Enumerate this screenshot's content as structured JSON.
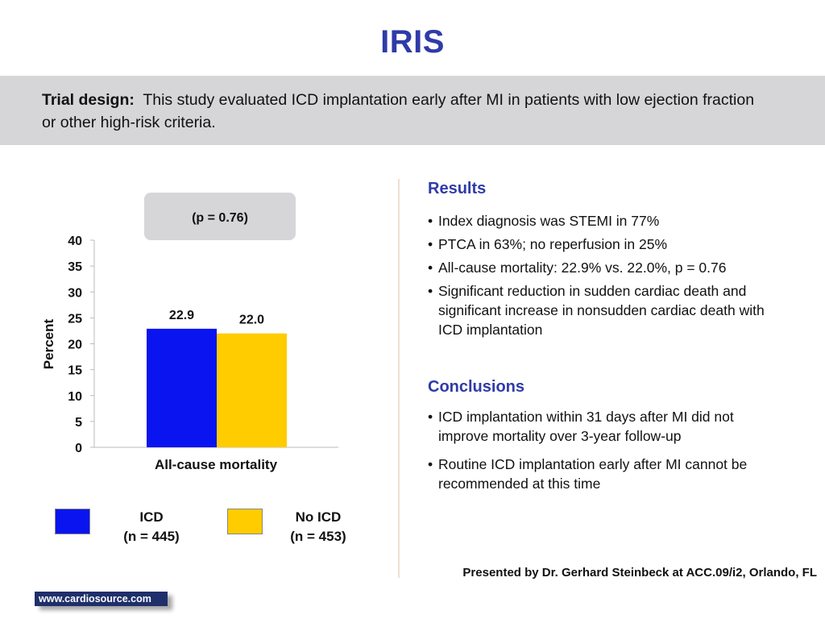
{
  "title": "IRIS",
  "design": {
    "label": "Trial design:",
    "text": "This study evaluated ICD implantation early after MI in patients with low ejection fraction or other high-risk criteria."
  },
  "p_value": "(p = 0.76)",
  "chart_data": {
    "type": "bar",
    "categories": [
      "All-cause mortality"
    ],
    "series": [
      {
        "name": "ICD\n(n = 445)",
        "values": [
          22.9
        ],
        "color": "#0a14f0"
      },
      {
        "name": "No ICD\n(n = 453)",
        "values": [
          22.0
        ],
        "color": "#ffcc00"
      }
    ],
    "data_labels": [
      "22.9",
      "22.0"
    ],
    "ylabel": "Percent",
    "xlabel": "All-cause mortality",
    "ylim": [
      0,
      40
    ],
    "yticks": [
      0,
      5,
      10,
      15,
      20,
      25,
      30,
      35,
      40
    ],
    "grid": false,
    "legend": "bottom"
  },
  "legend": [
    {
      "label": "ICD\n(n = 445)",
      "color": "#0a14f0"
    },
    {
      "label": "No ICD\n(n = 453)",
      "color": "#ffcc00"
    }
  ],
  "results": {
    "heading": "Results",
    "items": [
      "Index diagnosis was STEMI in 77%",
      "PTCA in 63%; no reperfusion in 25%",
      "All-cause mortality: 22.9% vs. 22.0%, p = 0.76",
      "Significant reduction in sudden cardiac death and significant increase in nonsudden cardiac death with ICD implantation"
    ]
  },
  "conclusions": {
    "heading": "Conclusions",
    "items": [
      "ICD implantation within 31 days after MI did not improve mortality over 3-year follow-up",
      "Routine ICD implantation early after MI cannot be recommended at this time"
    ]
  },
  "presented": "Presented by Dr. Gerhard Steinbeck at ACC.09/i2, Orlando, FL",
  "website": "www.cardiosource.com"
}
